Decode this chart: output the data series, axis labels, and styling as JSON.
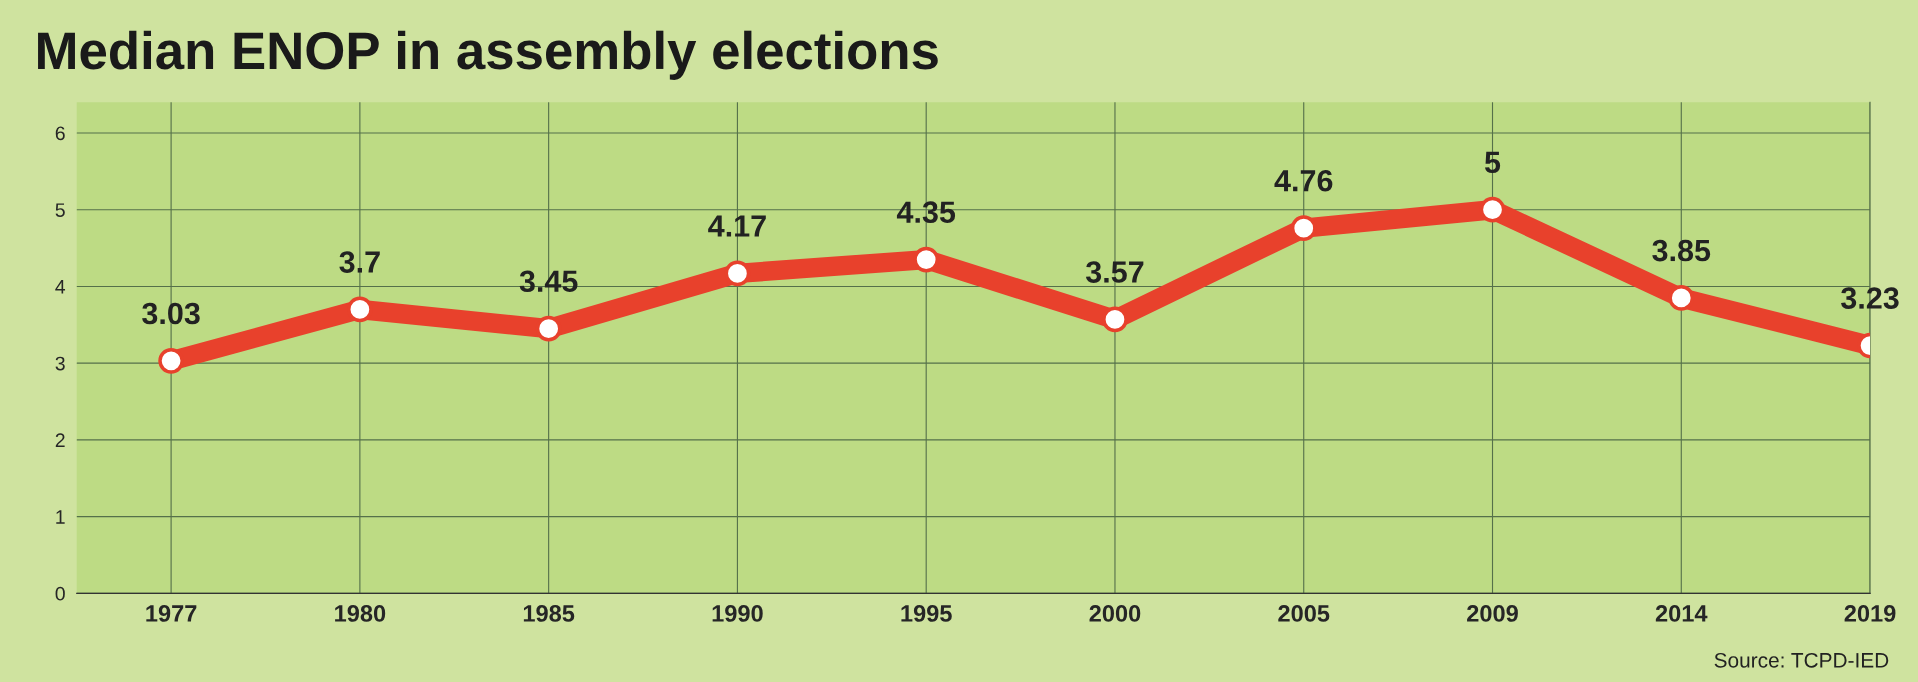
{
  "chart_data": {
    "type": "line",
    "title": "Median ENOP in assembly elections",
    "categories": [
      "1977",
      "1980",
      "1985",
      "1990",
      "1995",
      "2000",
      "2005",
      "2009",
      "2014",
      "2019"
    ],
    "series": [
      {
        "color": "#e8412c",
        "values": [
          3.03,
          3.7,
          3.45,
          4.17,
          4.35,
          3.57,
          4.76,
          5,
          3.85,
          3.23
        ]
      }
    ],
    "data_labels": true,
    "marker": "circle",
    "line_style": "solid",
    "ylim": [
      0,
      6.4
    ],
    "yticks": [
      0,
      1,
      2,
      3,
      4,
      5,
      6
    ],
    "grid": true,
    "legend": false,
    "annotations": [
      "Source: TCPD-IED"
    ]
  }
}
